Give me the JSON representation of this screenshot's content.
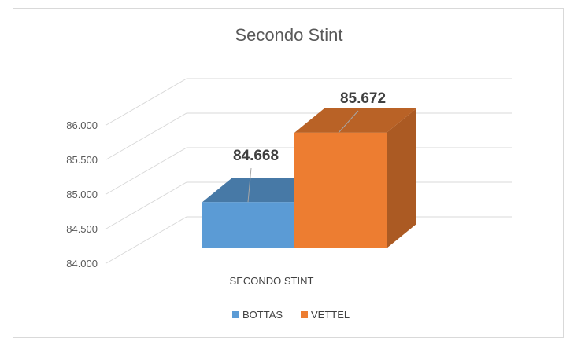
{
  "chart_data": {
    "type": "bar",
    "title": "Secondo Stint",
    "categories": [
      "SECONDO STINT"
    ],
    "series": [
      {
        "name": "BOTTAS",
        "values": [
          84.668
        ],
        "label": "84.668",
        "color": "#5b9bd5"
      },
      {
        "name": "VETTEL",
        "values": [
          85.672
        ],
        "label": "85.672",
        "color": "#ed7d31"
      }
    ],
    "yticks": [
      "84.000",
      "84.500",
      "85.000",
      "85.500",
      "86.000"
    ],
    "ylim": [
      84.0,
      86.0
    ],
    "legend_position": "bottom",
    "grid": true,
    "style": "3d-column"
  }
}
